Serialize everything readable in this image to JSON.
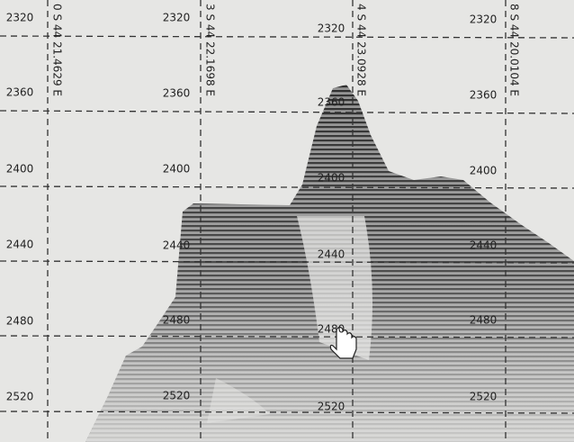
{
  "depth_columns": [
    {
      "labels": [
        2320,
        2360,
        2400,
        2440,
        2480,
        2520
      ]
    },
    {
      "labels": [
        2320,
        2360,
        2400,
        2440,
        2480,
        2520
      ]
    },
    {
      "labels": [
        2320,
        2360,
        2400,
        2440,
        2480,
        2520
      ]
    },
    {
      "labels": [
        2320,
        2360,
        2400,
        2440,
        2480,
        2520
      ]
    }
  ],
  "track_labels": [
    "0 S 44 21.4629 E",
    "3 S 44 22.1698 E",
    "4 S 44 23.0928 E",
    "8 S 44 20.0104 E"
  ]
}
